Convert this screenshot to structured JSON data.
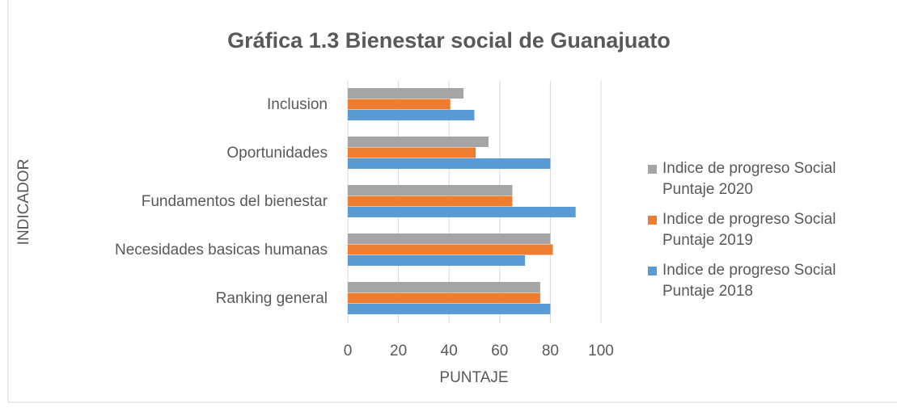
{
  "chart_data": {
    "type": "bar",
    "orientation": "horizontal",
    "title": "Gráfica 1.3 Bienestar social de Guanajuato",
    "x_label": "PUNTAJE",
    "y_label": "INDICADOR",
    "categories": [
      "Ranking general",
      "Necesidades basicas humanas",
      "Fundamentos del bienestar",
      "Oportunidades",
      "Inclusion"
    ],
    "series": [
      {
        "name": "Indice de progreso Social Puntaje 2018",
        "color": "#5b9bd5",
        "values": [
          80,
          70,
          90,
          80,
          50
        ]
      },
      {
        "name": "Indice de progreso Social Puntaje 2019",
        "color": "#ed7d31",
        "values": [
          76,
          81,
          65,
          50.5,
          40.5
        ]
      },
      {
        "name": "Indice de progreso Social Puntaje 2020",
        "color": "#a5a5a5",
        "values": [
          76,
          80,
          65,
          55.6,
          45.7
        ]
      }
    ],
    "xlim": [
      0,
      100
    ],
    "xticks": [
      0,
      20,
      40,
      60,
      80,
      100
    ],
    "grid": true,
    "legend": "right"
  }
}
